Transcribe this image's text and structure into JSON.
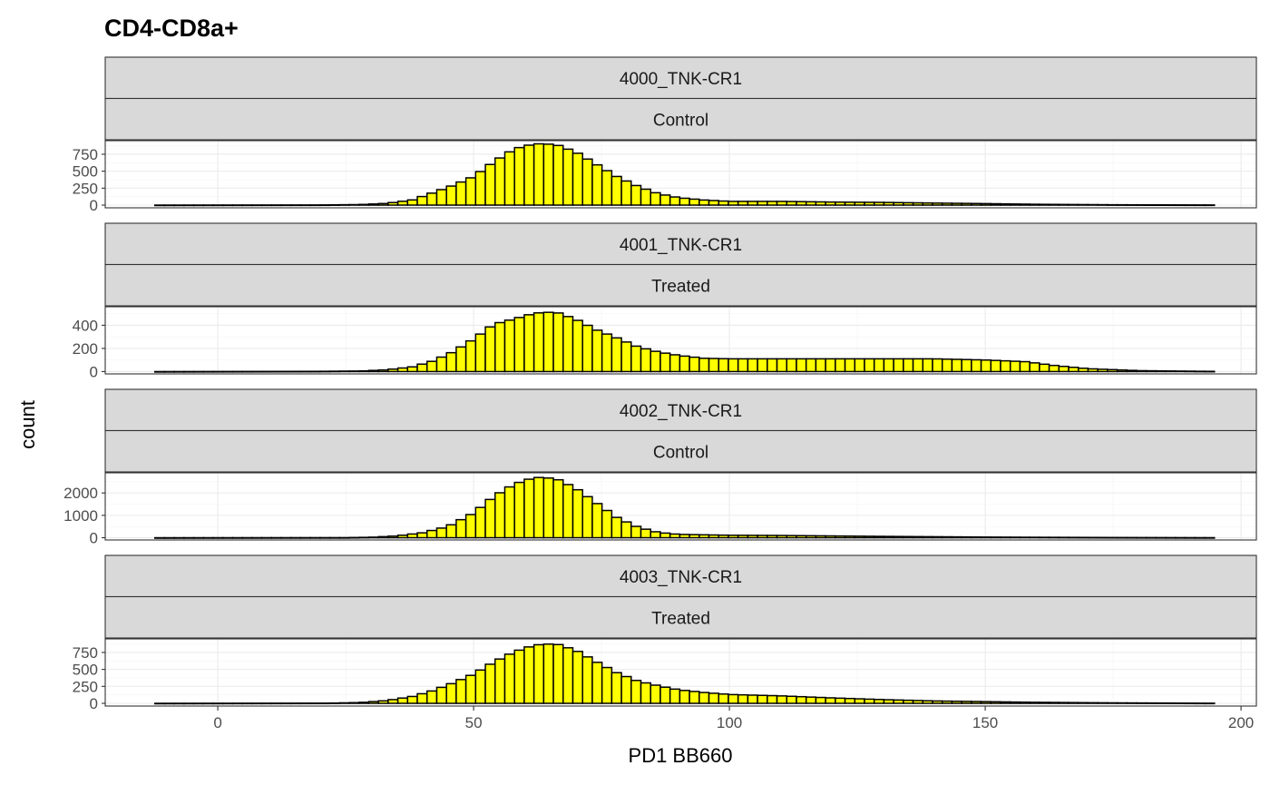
{
  "chart_data": {
    "type": "bar",
    "title": "CD4-CD8a+",
    "xlabel": "PD1 BB660",
    "ylabel": "count",
    "xlim": [
      -22,
      203
    ],
    "x_ticks": [
      0,
      50,
      100,
      150,
      200
    ],
    "bin_width": 1.9,
    "bin_start": -12.3,
    "fill_color": "#ffff00",
    "outline_color": "#000000",
    "strip_color": "#d9d9d9",
    "grid": true,
    "facet_layout": "rows",
    "panels": [
      {
        "strip_top": "4000_TNK-CR1",
        "strip_bottom": "Control",
        "ylim": [
          -40,
          950
        ],
        "y_ticks": [
          0,
          250,
          500,
          750
        ],
        "y_tick_labels": [
          "0",
          "250",
          "500",
          "750"
        ],
        "anchors": [
          [
            -12,
            0
          ],
          [
            20,
            2
          ],
          [
            28,
            8
          ],
          [
            33,
            25
          ],
          [
            38,
            75
          ],
          [
            42,
            180
          ],
          [
            46,
            290
          ],
          [
            50,
            420
          ],
          [
            54,
            640
          ],
          [
            58,
            830
          ],
          [
            62,
            905
          ],
          [
            66,
            895
          ],
          [
            70,
            780
          ],
          [
            74,
            600
          ],
          [
            78,
            420
          ],
          [
            82,
            280
          ],
          [
            86,
            170
          ],
          [
            90,
            110
          ],
          [
            95,
            75
          ],
          [
            100,
            55
          ],
          [
            110,
            55
          ],
          [
            120,
            45
          ],
          [
            130,
            40
          ],
          [
            140,
            30
          ],
          [
            150,
            22
          ],
          [
            160,
            12
          ],
          [
            175,
            5
          ],
          [
            193,
            2
          ]
        ]
      },
      {
        "strip_top": "4001_TNK-CR1",
        "strip_bottom": "Treated",
        "ylim": [
          -20,
          560
        ],
        "y_ticks": [
          0,
          200,
          400
        ],
        "y_tick_labels": [
          "0",
          "200",
          "400"
        ],
        "anchors": [
          [
            -12,
            0
          ],
          [
            20,
            2
          ],
          [
            28,
            5
          ],
          [
            33,
            15
          ],
          [
            38,
            40
          ],
          [
            42,
            90
          ],
          [
            46,
            170
          ],
          [
            50,
            280
          ],
          [
            54,
            410
          ],
          [
            58,
            455
          ],
          [
            62,
            505
          ],
          [
            66,
            515
          ],
          [
            70,
            450
          ],
          [
            74,
            360
          ],
          [
            78,
            290
          ],
          [
            82,
            215
          ],
          [
            86,
            170
          ],
          [
            90,
            140
          ],
          [
            95,
            115
          ],
          [
            100,
            110
          ],
          [
            110,
            110
          ],
          [
            120,
            110
          ],
          [
            130,
            110
          ],
          [
            140,
            110
          ],
          [
            150,
            100
          ],
          [
            158,
            85
          ],
          [
            163,
            55
          ],
          [
            170,
            25
          ],
          [
            180,
            8
          ],
          [
            193,
            2
          ]
        ]
      },
      {
        "strip_top": "4002_TNK-CR1",
        "strip_bottom": "Control",
        "ylim": [
          -100,
          2900
        ],
        "y_ticks": [
          0,
          1000,
          2000
        ],
        "y_tick_labels": [
          "0",
          "1000",
          "2000"
        ],
        "anchors": [
          [
            -12,
            0
          ],
          [
            25,
            5
          ],
          [
            30,
            20
          ],
          [
            35,
            80
          ],
          [
            40,
            220
          ],
          [
            45,
            500
          ],
          [
            50,
            1100
          ],
          [
            54,
            1850
          ],
          [
            58,
            2400
          ],
          [
            62,
            2700
          ],
          [
            66,
            2650
          ],
          [
            70,
            2200
          ],
          [
            74,
            1550
          ],
          [
            78,
            900
          ],
          [
            82,
            480
          ],
          [
            86,
            240
          ],
          [
            90,
            150
          ],
          [
            100,
            110
          ],
          [
            110,
            100
          ],
          [
            120,
            80
          ],
          [
            130,
            60
          ],
          [
            140,
            45
          ],
          [
            150,
            30
          ],
          [
            160,
            20
          ],
          [
            175,
            10
          ],
          [
            193,
            3
          ]
        ]
      },
      {
        "strip_top": "4003_TNK-CR1",
        "strip_bottom": "Treated",
        "ylim": [
          -40,
          950
        ],
        "y_ticks": [
          0,
          250,
          500,
          750
        ],
        "y_tick_labels": [
          "0",
          "250",
          "500",
          "750"
        ],
        "anchors": [
          [
            -12,
            0
          ],
          [
            22,
            3
          ],
          [
            28,
            12
          ],
          [
            33,
            40
          ],
          [
            38,
            100
          ],
          [
            42,
            185
          ],
          [
            46,
            300
          ],
          [
            50,
            430
          ],
          [
            54,
            610
          ],
          [
            58,
            760
          ],
          [
            62,
            860
          ],
          [
            66,
            880
          ],
          [
            70,
            780
          ],
          [
            74,
            610
          ],
          [
            78,
            450
          ],
          [
            82,
            330
          ],
          [
            86,
            260
          ],
          [
            90,
            200
          ],
          [
            95,
            160
          ],
          [
            100,
            130
          ],
          [
            110,
            110
          ],
          [
            120,
            80
          ],
          [
            130,
            55
          ],
          [
            140,
            35
          ],
          [
            150,
            25
          ],
          [
            160,
            15
          ],
          [
            175,
            7
          ],
          [
            193,
            2
          ]
        ]
      }
    ]
  }
}
